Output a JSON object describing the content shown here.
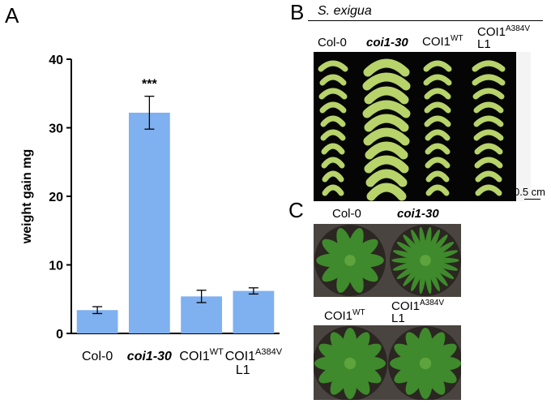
{
  "panels": {
    "a": {
      "letter": "A"
    },
    "b": {
      "letter": "B",
      "species": "S. exigua",
      "scale": "0.5 cm",
      "labels": {
        "col0": "Col-0",
        "coi130": "coi1-30",
        "coi1wt_base": "COI1",
        "coi1wt_sup": "WT",
        "a384v_base": "COI1",
        "a384v_sup": "A384V",
        "a384v_line": "L1"
      }
    },
    "c": {
      "letter": "C",
      "labels": {
        "col0": "Col-0",
        "coi130": "coi1-30",
        "coi1wt_base": "COI1",
        "coi1wt_sup": "WT",
        "a384v_base": "COI1",
        "a384v_sup": "A384V",
        "a384v_line": "L1"
      }
    }
  },
  "chart_data": {
    "type": "bar",
    "ylabel": "weight gain mg",
    "ylim": [
      0,
      40
    ],
    "yticks": [
      0,
      10,
      20,
      30,
      40
    ],
    "categories": [
      {
        "base": "Col-0",
        "sup": "",
        "line2": "",
        "italic": false
      },
      {
        "base": "coi1-30",
        "sup": "",
        "line2": "",
        "italic": true
      },
      {
        "base": "COI1",
        "sup": "WT",
        "line2": "",
        "italic": false
      },
      {
        "base": "COI1",
        "sup": "A384V",
        "line2": "L1",
        "italic": false
      }
    ],
    "values": [
      3.4,
      32.2,
      5.4,
      6.2
    ],
    "errors": [
      0.5,
      2.4,
      0.9,
      0.45
    ],
    "annotations": [
      {
        "index": 1,
        "text": "***"
      }
    ],
    "bar_color": "#7fb0f0",
    "grid": false
  },
  "colors": {
    "photo_bg_b": "#050505",
    "photo_bg_c": "#4a4440",
    "caterpillar": "#b7d36a",
    "plant": "#3f8a2c"
  }
}
